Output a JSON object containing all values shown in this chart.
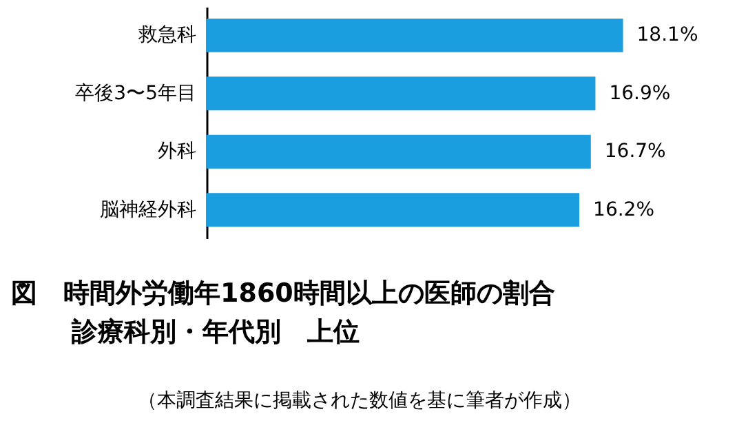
{
  "chart_data": {
    "type": "bar",
    "orientation": "horizontal",
    "title": "図　時間外労働年1860時間以上の医師の割合",
    "subtitle": "診療科別・年代別　上位",
    "annotations": [
      "（本調査結果に掲載された数値を基に筆者が作成）"
    ],
    "categories": [
      "救急科",
      "卒後3〜5年目",
      "外科",
      "脳神経外科"
    ],
    "values": [
      18.1,
      16.9,
      16.7,
      16.2
    ],
    "value_labels": [
      "18.1%",
      "16.9%",
      "16.7%",
      "16.2%"
    ],
    "color": "#1a9ee0"
  }
}
